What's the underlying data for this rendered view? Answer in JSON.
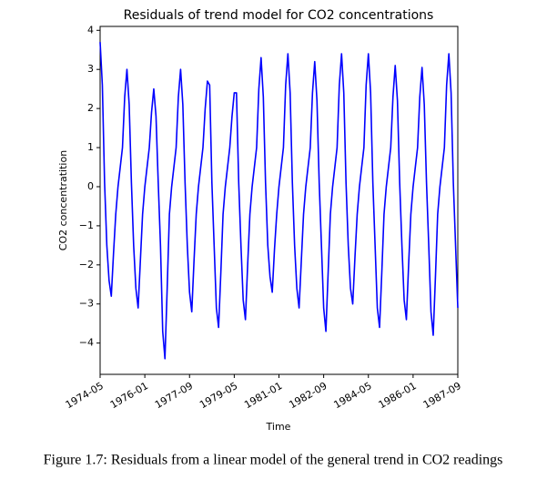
{
  "chart_data": {
    "type": "line",
    "title": "Residuals of trend model for CO2 concentrations",
    "xlabel": "Time",
    "ylabel": "CO2 concentratition",
    "color": "#0000ff",
    "x": [
      "1974-05",
      "1974-06",
      "1974-07",
      "1974-08",
      "1974-09",
      "1974-10",
      "1974-11",
      "1974-12",
      "1975-01",
      "1975-02",
      "1975-03",
      "1975-04",
      "1975-05",
      "1975-06",
      "1975-07",
      "1975-08",
      "1975-09",
      "1975-10",
      "1975-11",
      "1975-12",
      "1976-01",
      "1976-02",
      "1976-03",
      "1976-04",
      "1976-05",
      "1976-06",
      "1976-07",
      "1976-08",
      "1976-09",
      "1976-10",
      "1976-11",
      "1976-12",
      "1977-01",
      "1977-02",
      "1977-03",
      "1977-04",
      "1977-05",
      "1977-06",
      "1977-07",
      "1977-08",
      "1977-09",
      "1977-10",
      "1977-11",
      "1977-12",
      "1978-01",
      "1978-02",
      "1978-03",
      "1978-04",
      "1978-05",
      "1978-06",
      "1978-07",
      "1978-08",
      "1978-09",
      "1978-10",
      "1978-11",
      "1978-12",
      "1979-01",
      "1979-02",
      "1979-03",
      "1979-04",
      "1979-05",
      "1979-06",
      "1979-07",
      "1979-08",
      "1979-09",
      "1979-10",
      "1979-11",
      "1979-12",
      "1980-01",
      "1980-02",
      "1980-03",
      "1980-04",
      "1980-05",
      "1980-06",
      "1980-07",
      "1980-08",
      "1980-09",
      "1980-10",
      "1980-11",
      "1980-12",
      "1981-01",
      "1981-02",
      "1981-03",
      "1981-04",
      "1981-05",
      "1981-06",
      "1981-07",
      "1981-08",
      "1981-09",
      "1981-10",
      "1981-11",
      "1981-12",
      "1982-01",
      "1982-02",
      "1982-03",
      "1982-04",
      "1982-05",
      "1982-06",
      "1982-07",
      "1982-08",
      "1982-09",
      "1982-10",
      "1982-11",
      "1982-12",
      "1983-01",
      "1983-02",
      "1983-03",
      "1983-04",
      "1983-05",
      "1983-06",
      "1983-07",
      "1983-08",
      "1983-09",
      "1983-10",
      "1983-11",
      "1983-12",
      "1984-01",
      "1984-02",
      "1984-03",
      "1984-04",
      "1984-05",
      "1984-06",
      "1984-07",
      "1984-08",
      "1984-09",
      "1984-10",
      "1984-11",
      "1984-12",
      "1985-01",
      "1985-02",
      "1985-03",
      "1985-04",
      "1985-05",
      "1985-06",
      "1985-07",
      "1985-08",
      "1985-09",
      "1985-10",
      "1985-11",
      "1985-12",
      "1986-01",
      "1986-02",
      "1986-03",
      "1986-04",
      "1986-05",
      "1986-06",
      "1986-07",
      "1986-08",
      "1986-09",
      "1986-10",
      "1986-11",
      "1986-12",
      "1987-01",
      "1987-02",
      "1987-03",
      "1987-04",
      "1987-05",
      "1987-06",
      "1987-07",
      "1987-08",
      "1987-09"
    ],
    "values": [
      3.7,
      2.6,
      0.1,
      -1.5,
      -2.4,
      -2.8,
      -1.7,
      -0.7,
      0.0,
      0.5,
      1.0,
      2.3,
      3.0,
      2.1,
      0.1,
      -1.5,
      -2.6,
      -3.1,
      -1.9,
      -0.7,
      0.0,
      0.5,
      1.0,
      1.9,
      2.5,
      1.8,
      0.1,
      -1.5,
      -3.7,
      -4.4,
      -2.6,
      -0.7,
      0.0,
      0.5,
      1.0,
      2.3,
      3.0,
      2.1,
      0.1,
      -1.5,
      -2.7,
      -3.2,
      -1.9,
      -0.7,
      0.0,
      0.5,
      1.0,
      2.0,
      2.7,
      2.6,
      0.1,
      -1.5,
      -3.1,
      -3.6,
      -2.2,
      -0.7,
      0.0,
      0.5,
      1.0,
      1.8,
      2.4,
      2.4,
      0.1,
      -1.5,
      -2.9,
      -3.4,
      -2.0,
      -0.7,
      0.0,
      0.5,
      1.0,
      2.5,
      3.3,
      2.3,
      0.1,
      -1.5,
      -2.3,
      -2.7,
      -1.6,
      -0.7,
      0.0,
      0.5,
      1.0,
      2.6,
      3.4,
      2.4,
      0.1,
      -1.5,
      -2.6,
      -3.1,
      -1.9,
      -0.7,
      0.0,
      0.5,
      1.0,
      2.4,
      3.2,
      2.2,
      0.1,
      -1.5,
      -3.1,
      -3.7,
      -2.2,
      -0.7,
      0.0,
      0.5,
      1.0,
      2.6,
      3.4,
      2.4,
      0.1,
      -1.5,
      -2.6,
      -3.0,
      -1.8,
      -0.7,
      0.0,
      0.5,
      1.0,
      2.6,
      3.4,
      2.4,
      0.1,
      -1.5,
      -3.1,
      -3.6,
      -2.2,
      -0.7,
      0.0,
      0.5,
      1.0,
      2.3,
      3.1,
      2.2,
      0.1,
      -1.5,
      -2.9,
      -3.4,
      -2.0,
      -0.7,
      0.0,
      0.5,
      1.0,
      2.3,
      3.05,
      2.1,
      0.1,
      -1.5,
      -3.2,
      -3.8,
      -2.3,
      -0.7,
      0.0,
      0.5,
      1.0,
      2.6,
      3.4,
      2.4,
      0.1,
      -1.5,
      -3.1
    ],
    "xlim": [
      "1974-05",
      "1987-09"
    ],
    "xticks": [
      "1974-05",
      "1976-01",
      "1977-09",
      "1979-05",
      "1981-01",
      "1982-09",
      "1984-05",
      "1986-01",
      "1987-09"
    ],
    "ylim": [
      -4.8,
      4.1
    ],
    "yticks": [
      {
        "value": -4,
        "label": "−4"
      },
      {
        "value": -3,
        "label": "−3"
      },
      {
        "value": -2,
        "label": "−2"
      },
      {
        "value": -1,
        "label": "−1"
      },
      0,
      1,
      2,
      3,
      4
    ]
  },
  "caption": "Figure 1.7: Residuals from a linear model of the general trend in CO2 readings"
}
